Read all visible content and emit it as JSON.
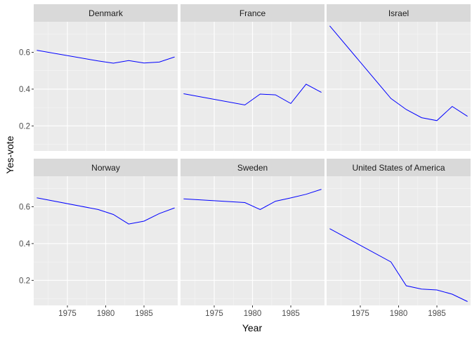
{
  "chart_data": {
    "type": "line",
    "xlabel": "Year",
    "ylabel": "Yes-vote",
    "xlim": [
      1970.6,
      1989.4
    ],
    "ylim": [
      0.064,
      0.766
    ],
    "x_ticks": [
      1975,
      1980,
      1985
    ],
    "y_ticks": [
      0.2,
      0.4,
      0.6
    ],
    "grid": true,
    "line_color": "#0000ff",
    "panel_bg": "#ebebeb",
    "strip_bg": "#d9d9d9",
    "panels": [
      {
        "name": "Denmark",
        "x": [
          1971,
          1979,
          1981,
          1983,
          1985,
          1987,
          1989
        ],
        "y": [
          0.611,
          0.553,
          0.541,
          0.555,
          0.542,
          0.547,
          0.575
        ]
      },
      {
        "name": "France",
        "x": [
          1971,
          1979,
          1981,
          1983,
          1985,
          1987,
          1989
        ],
        "y": [
          0.375,
          0.314,
          0.373,
          0.369,
          0.322,
          0.427,
          0.382
        ]
      },
      {
        "name": "Israel",
        "x": [
          1971,
          1979,
          1981,
          1983,
          1985,
          1987,
          1989
        ],
        "y": [
          0.744,
          0.349,
          0.289,
          0.245,
          0.229,
          0.306,
          0.252
        ]
      },
      {
        "name": "Norway",
        "x": [
          1971,
          1979,
          1981,
          1983,
          1985,
          1987,
          1989
        ],
        "y": [
          0.649,
          0.585,
          0.558,
          0.506,
          0.522,
          0.563,
          0.594
        ]
      },
      {
        "name": "Sweden",
        "x": [
          1971,
          1979,
          1981,
          1983,
          1985,
          1987,
          1989
        ],
        "y": [
          0.643,
          0.623,
          0.585,
          0.63,
          0.648,
          0.668,
          0.695
        ]
      },
      {
        "name": "United States of America",
        "x": [
          1971,
          1979,
          1981,
          1983,
          1985,
          1987,
          1989
        ],
        "y": [
          0.481,
          0.3,
          0.171,
          0.153,
          0.148,
          0.125,
          0.085
        ]
      }
    ]
  }
}
